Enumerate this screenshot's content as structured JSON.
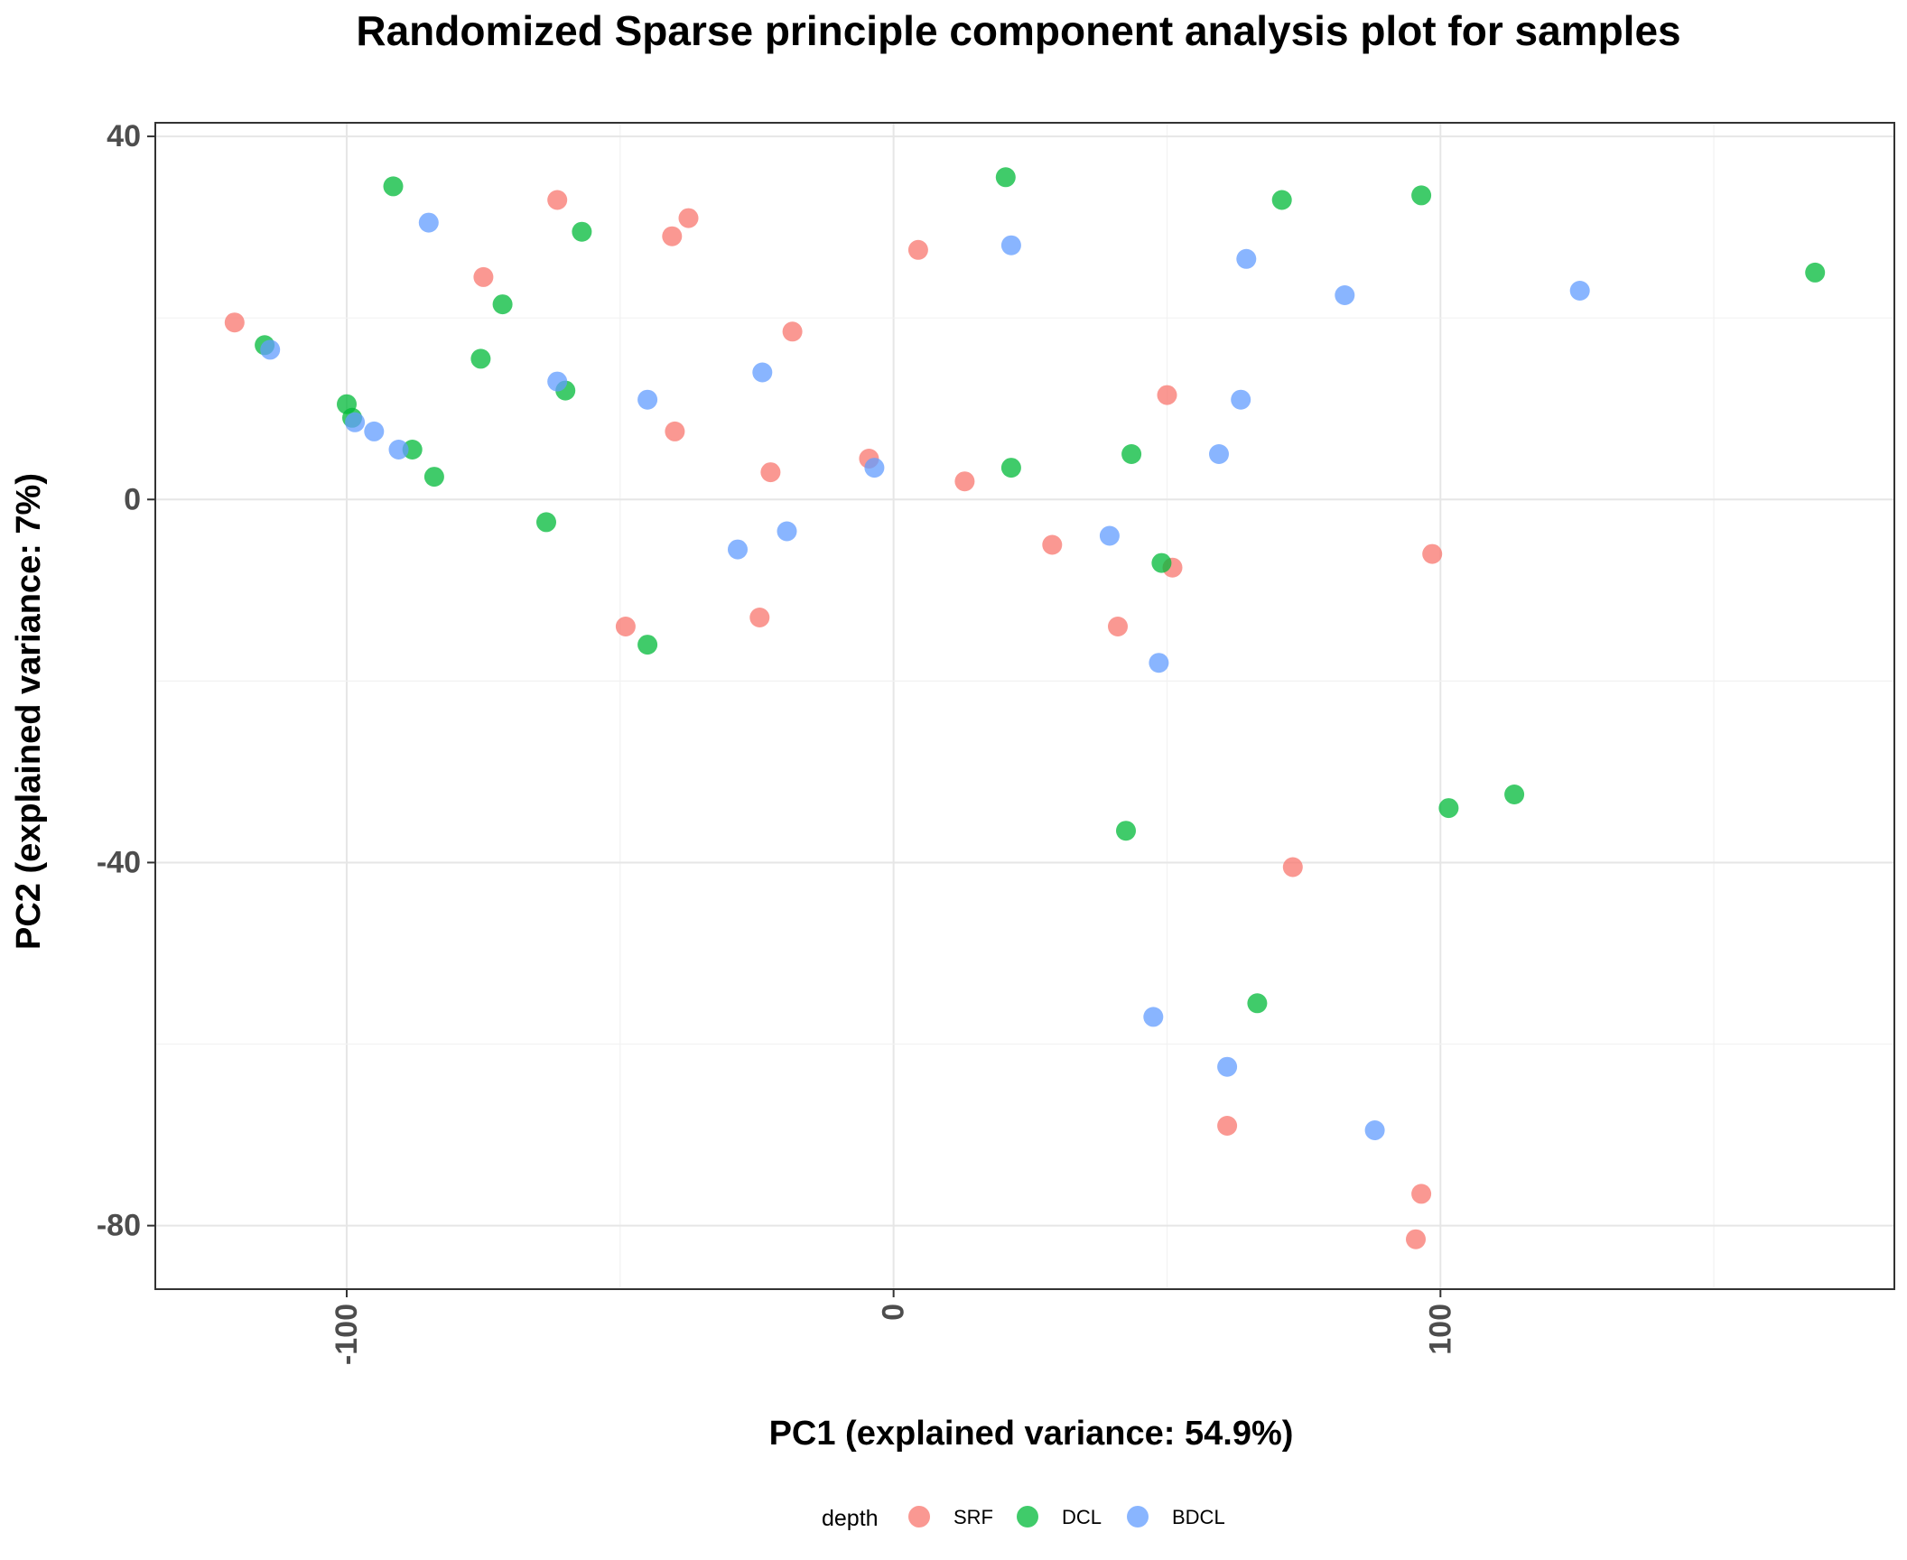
{
  "chart_data": {
    "type": "scatter",
    "title": "Randomized Sparse principle component analysis plot for samples",
    "xlabel": "PC1 (explained variance: 54.9%)",
    "ylabel": "PC2 (explained variance: 7%)",
    "xlim": [
      -135,
      183
    ],
    "ylim": [
      -87,
      41.5
    ],
    "x_ticks": [
      -100,
      0,
      100
    ],
    "x_tick_labels": [
      "-100",
      "0",
      "100"
    ],
    "y_ticks": [
      -80,
      -40,
      0,
      40
    ],
    "y_tick_labels": [
      "-80",
      "-40",
      "0",
      "40"
    ],
    "grid": true,
    "legend": {
      "title": "depth",
      "position": "bottom"
    },
    "series": [
      {
        "name": "SRF",
        "color": "#F8766D",
        "points": [
          [
            -120.5,
            19.5
          ],
          [
            -61.5,
            33
          ],
          [
            -37.5,
            31
          ],
          [
            -40.5,
            29
          ],
          [
            -75,
            24.5
          ],
          [
            -18.5,
            18.5
          ],
          [
            4.5,
            27.5
          ],
          [
            -40,
            7.5
          ],
          [
            -22.5,
            3
          ],
          [
            -4.5,
            4.5
          ],
          [
            13,
            2
          ],
          [
            50,
            11.5
          ],
          [
            29,
            -5
          ],
          [
            98.5,
            -6
          ],
          [
            51,
            -7.5
          ],
          [
            41,
            -14
          ],
          [
            -24.5,
            -13
          ],
          [
            -49,
            -14
          ],
          [
            73,
            -40.5
          ],
          [
            61,
            -69
          ],
          [
            96.5,
            -76.5
          ],
          [
            95.5,
            -81.5
          ]
        ]
      },
      {
        "name": "DCL",
        "color": "#00BA38",
        "points": [
          [
            -115,
            17
          ],
          [
            -91.5,
            34.5
          ],
          [
            -57,
            29.5
          ],
          [
            -71.5,
            21.5
          ],
          [
            -75.5,
            15.5
          ],
          [
            -100,
            10.5
          ],
          [
            -99,
            9
          ],
          [
            -88,
            5.5
          ],
          [
            -84,
            2.5
          ],
          [
            -60,
            12
          ],
          [
            -63.5,
            -2.5
          ],
          [
            -45,
            -16
          ],
          [
            20.5,
            35.5
          ],
          [
            71,
            33
          ],
          [
            96.5,
            33.5
          ],
          [
            168.5,
            25
          ],
          [
            21.5,
            3.5
          ],
          [
            43.5,
            5
          ],
          [
            49,
            -7
          ],
          [
            113.5,
            -32.5
          ],
          [
            101.5,
            -34
          ],
          [
            42.5,
            -36.5
          ],
          [
            66.5,
            -55.5
          ]
        ]
      },
      {
        "name": "BDCL",
        "color": "#619CFF",
        "points": [
          [
            -85,
            30.5
          ],
          [
            -114,
            16.5
          ],
          [
            -98.5,
            8.5
          ],
          [
            -95,
            7.5
          ],
          [
            -90.5,
            5.5
          ],
          [
            -61.5,
            13
          ],
          [
            -45,
            11
          ],
          [
            -24,
            14
          ],
          [
            -3.5,
            3.5
          ],
          [
            21.5,
            28
          ],
          [
            64.5,
            26.5
          ],
          [
            82.5,
            22.5
          ],
          [
            125.5,
            23
          ],
          [
            63.5,
            11
          ],
          [
            59.5,
            5
          ],
          [
            -28.5,
            -5.5
          ],
          [
            -19.5,
            -3.5
          ],
          [
            39.5,
            -4
          ],
          [
            48.5,
            -18
          ],
          [
            47.5,
            -57
          ],
          [
            61,
            -62.5
          ],
          [
            88,
            -69.5
          ]
        ]
      }
    ]
  }
}
